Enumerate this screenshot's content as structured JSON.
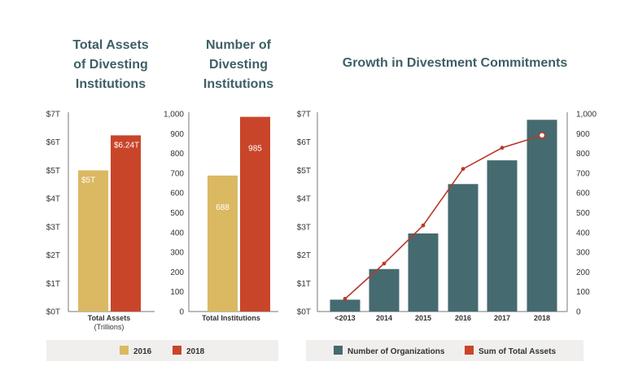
{
  "colors": {
    "y2016": "#dbb862",
    "y2018": "#c9452a",
    "teal": "#456a70",
    "line": "#b8392a",
    "title": "#3e5f66",
    "legend_bg": "#f0efed"
  },
  "chart_data": [
    {
      "type": "bar",
      "title": [
        "Total Assets",
        "of Divesting",
        "Institutions"
      ],
      "categories": [
        "Total Assets"
      ],
      "category_sub": "(Trillions)",
      "series": [
        {
          "name": "2016",
          "values": [
            5
          ],
          "label": "$5T"
        },
        {
          "name": "2018",
          "values": [
            6.24
          ],
          "label": "$6.24T"
        }
      ],
      "ylim": [
        0,
        7
      ],
      "yticks": [
        "$0T",
        "$1T",
        "$2T",
        "$3T",
        "$4T",
        "$5T",
        "$6T",
        "$7T"
      ]
    },
    {
      "type": "bar",
      "title": [
        "Number of",
        "Divesting",
        "Institutions"
      ],
      "categories": [
        "Total Institutions"
      ],
      "series": [
        {
          "name": "2016",
          "values": [
            688
          ],
          "label": "688"
        },
        {
          "name": "2018",
          "values": [
            985
          ],
          "label": "985"
        }
      ],
      "ylim": [
        0,
        1000
      ],
      "yticks": [
        "0",
        "100",
        "200",
        "300",
        "400",
        "500",
        "600",
        "700",
        "800",
        "900",
        "1,000"
      ]
    },
    {
      "type": "bar+line",
      "title": "Growth in Divestment Commitments",
      "categories": [
        "<2013",
        "2014",
        "2015",
        "2016",
        "2017",
        "2018"
      ],
      "series": [
        {
          "name": "Number of Organizations",
          "type": "bar",
          "axis": "right",
          "values": [
            60,
            215,
            395,
            645,
            765,
            970
          ]
        },
        {
          "name": "Sum of Total Assets",
          "type": "line",
          "axis": "left",
          "values": [
            0.45,
            1.7,
            3.05,
            5.05,
            5.8,
            6.24
          ]
        }
      ],
      "ylim_left": [
        0,
        7
      ],
      "ylim_right": [
        0,
        1000
      ],
      "yticks_left": [
        "$0T",
        "$1T",
        "$2T",
        "$3T",
        "$4T",
        "$5T",
        "$6T",
        "$7T"
      ],
      "yticks_right": [
        "0",
        "100",
        "200",
        "300",
        "400",
        "500",
        "600",
        "700",
        "800",
        "900",
        "1,000"
      ]
    }
  ],
  "legends": {
    "left": [
      "2016",
      "2018"
    ],
    "right": [
      "Number of Organizations",
      "Sum of Total Assets"
    ]
  }
}
